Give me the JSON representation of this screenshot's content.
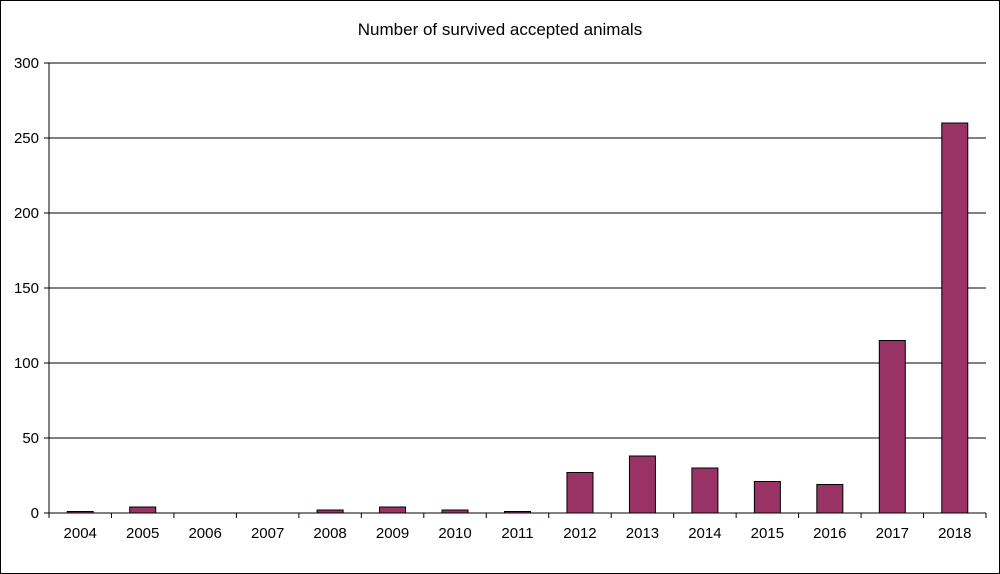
{
  "chart_data": {
    "type": "bar",
    "title": "Number of survived accepted animals",
    "xlabel": "",
    "ylabel": "",
    "categories": [
      "2004",
      "2005",
      "2006",
      "2007",
      "2008",
      "2009",
      "2010",
      "2011",
      "2012",
      "2013",
      "2014",
      "2015",
      "2016",
      "2017",
      "2018"
    ],
    "values": [
      1,
      4,
      0,
      0,
      2,
      4,
      2,
      1,
      27,
      38,
      30,
      21,
      19,
      115,
      260
    ],
    "ylim": [
      0,
      300
    ],
    "yticks": [
      0,
      50,
      100,
      150,
      200,
      250,
      300
    ],
    "grid": true,
    "bar_color": "#993366",
    "legend": "none"
  }
}
